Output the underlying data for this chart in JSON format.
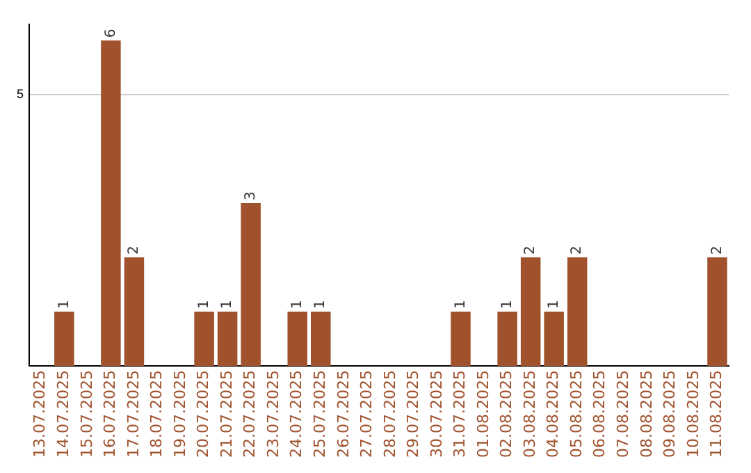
{
  "chart_data": {
    "type": "bar",
    "categories": [
      "13.07.2025",
      "14.07.2025",
      "15.07.2025",
      "16.07.2025",
      "17.07.2025",
      "18.07.2025",
      "19.07.2025",
      "20.07.2025",
      "21.07.2025",
      "22.07.2025",
      "23.07.2025",
      "24.07.2025",
      "25.07.2025",
      "26.07.2025",
      "27.07.2025",
      "28.07.2025",
      "29.07.2025",
      "30.07.2025",
      "31.07.2025",
      "01.08.2025",
      "02.08.2025",
      "03.08.2025",
      "04.08.2025",
      "05.08.2025",
      "06.08.2025",
      "07.08.2025",
      "08.08.2025",
      "09.08.2025",
      "10.08.2025",
      "11.08.2025"
    ],
    "values": [
      0,
      1,
      0,
      6,
      2,
      0,
      0,
      1,
      1,
      3,
      0,
      1,
      1,
      0,
      0,
      0,
      0,
      0,
      1,
      0,
      1,
      2,
      1,
      2,
      0,
      0,
      0,
      0,
      0,
      2
    ],
    "value_labels": [
      null,
      "1",
      null,
      "6",
      "2",
      null,
      null,
      "1",
      "1",
      "3",
      null,
      "1",
      "1",
      null,
      null,
      null,
      null,
      null,
      "1",
      null,
      "1",
      "2",
      "1",
      "2",
      null,
      null,
      null,
      null,
      null,
      "2"
    ],
    "color": "#a0522d",
    "ylim": [
      0,
      6.3
    ],
    "yticks": [
      5
    ],
    "grid": "y",
    "legend": false
  }
}
